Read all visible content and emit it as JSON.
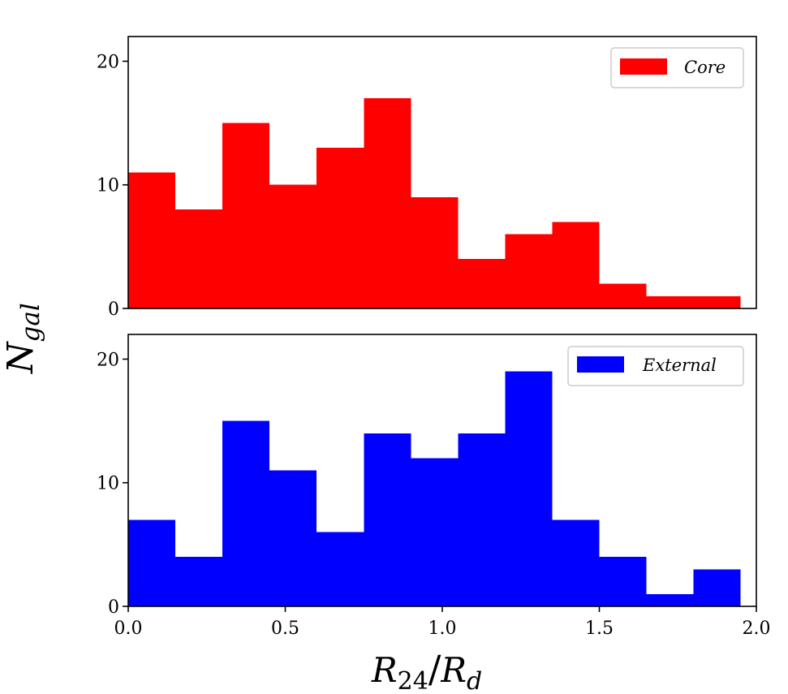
{
  "chart_data": [
    {
      "type": "bar",
      "subtype": "histogram",
      "panel": "top",
      "series": [
        {
          "name": "Core",
          "color": "#ff0000",
          "bin_edges": [
            0.0,
            0.15,
            0.3,
            0.45,
            0.6,
            0.75,
            0.9,
            1.05,
            1.2,
            1.35,
            1.5,
            1.65,
            1.8,
            1.95
          ],
          "values": [
            11,
            8,
            15,
            10,
            13,
            17,
            9,
            4,
            6,
            7,
            2,
            1,
            1
          ]
        }
      ],
      "xlim": [
        0.0,
        2.0
      ],
      "ylim": [
        0,
        22
      ],
      "yticks": [
        0,
        10,
        20
      ],
      "ytick_labels": [
        "0",
        "10",
        "20"
      ],
      "legend": {
        "labels": [
          "Core"
        ],
        "placement": "top-right"
      },
      "grid": false
    },
    {
      "type": "bar",
      "subtype": "histogram",
      "panel": "bottom",
      "series": [
        {
          "name": "External",
          "color": "#0000ff",
          "bin_edges": [
            0.0,
            0.15,
            0.3,
            0.45,
            0.6,
            0.75,
            0.9,
            1.05,
            1.2,
            1.35,
            1.5,
            1.65,
            1.8,
            1.95
          ],
          "values": [
            7,
            4,
            15,
            11,
            6,
            14,
            12,
            14,
            19,
            7,
            4,
            1,
            3
          ]
        }
      ],
      "xlim": [
        0.0,
        2.0
      ],
      "ylim": [
        0,
        22
      ],
      "xticks": [
        0.0,
        0.5,
        1.0,
        1.5,
        2.0
      ],
      "xtick_labels": [
        "0.0",
        "0.5",
        "1.0",
        "1.5",
        "2.0"
      ],
      "yticks": [
        0,
        10,
        20
      ],
      "ytick_labels": [
        "0",
        "10",
        "20"
      ],
      "legend": {
        "labels": [
          "External"
        ],
        "placement": "top-right"
      },
      "grid": false
    }
  ],
  "labels": {
    "ylabel_main": "N",
    "ylabel_sub": "gal",
    "xlabel_num": "R",
    "xlabel_num_sub": "24",
    "xlabel_slash": "/",
    "xlabel_den": "R",
    "xlabel_den_sub": "d"
  },
  "legends": {
    "core": "Core",
    "external": "External"
  }
}
